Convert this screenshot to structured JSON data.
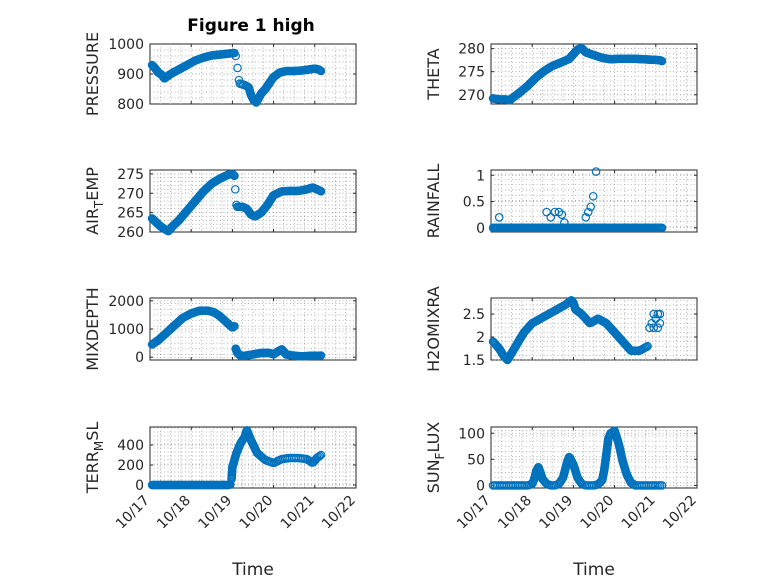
{
  "figure": {
    "title": "Figure 1 high",
    "marker_color": "#0072BD"
  },
  "chart_data": [
    {
      "type": "scatter",
      "title": "Figure 1 high",
      "xlabel": "",
      "ylabel": "PRESSURE",
      "ylim": [
        800,
        1000
      ],
      "yticks": [
        800,
        900,
        1000
      ],
      "xlim": [
        0,
        5
      ],
      "xticklabels": [
        "10/17",
        "10/18",
        "10/19",
        "10/20",
        "10/21",
        "10/22"
      ],
      "show_xticklabels": false,
      "segments": [
        {
          "x": [
            0.05,
            0.12,
            0.2,
            0.28,
            0.35,
            0.5,
            0.7,
            0.9,
            1.1,
            1.3,
            1.5,
            1.7,
            1.9,
            2.05
          ],
          "y": [
            930,
            920,
            905,
            898,
            885,
            900,
            915,
            930,
            945,
            955,
            962,
            965,
            968,
            970
          ],
          "n": 90
        },
        {
          "x": [
            2.08,
            2.12,
            2.16
          ],
          "y": [
            960,
            925,
            880
          ],
          "n": 3
        },
        {
          "x": [
            2.18,
            2.25,
            2.32,
            2.4,
            2.45,
            2.52,
            2.58
          ],
          "y": [
            868,
            865,
            862,
            855,
            830,
            812,
            805
          ],
          "n": 20
        },
        {
          "x": [
            2.6,
            2.7,
            2.8,
            2.9,
            3.0,
            3.15,
            3.3,
            3.5,
            3.7,
            3.85,
            4.0,
            4.1,
            4.15
          ],
          "y": [
            810,
            835,
            850,
            870,
            890,
            905,
            910,
            910,
            912,
            915,
            918,
            915,
            910
          ],
          "n": 80
        }
      ]
    },
    {
      "type": "scatter",
      "xlabel": "",
      "ylabel": "THETA",
      "ylim": [
        268,
        281
      ],
      "yticks": [
        270,
        275,
        280
      ],
      "xlim": [
        0,
        5
      ],
      "xticklabels": [
        "10/17",
        "10/18",
        "10/19",
        "10/20",
        "10/21",
        "10/22"
      ],
      "show_xticklabels": false,
      "segments": [
        {
          "x": [
            0.05,
            0.2,
            0.35,
            0.45,
            0.55,
            0.7,
            0.9,
            1.1,
            1.3,
            1.5,
            1.7,
            1.9,
            2.0,
            2.1,
            2.2,
            2.3,
            2.5,
            2.7,
            2.9,
            3.1,
            3.3,
            3.5,
            3.7,
            3.9,
            4.1,
            4.15
          ],
          "y": [
            269.2,
            269.0,
            269.0,
            268.8,
            269.5,
            270.5,
            272.0,
            273.8,
            275.2,
            276.3,
            277.0,
            277.8,
            278.8,
            279.8,
            280.1,
            279.2,
            278.6,
            278.0,
            277.7,
            277.8,
            277.8,
            277.8,
            277.7,
            277.6,
            277.5,
            277.3
          ],
          "n": 200
        }
      ]
    },
    {
      "type": "scatter",
      "xlabel": "",
      "ylabel": "AIR_TEMP",
      "ylabel_main": "AIR",
      "ylabel_sub": "T",
      "ylabel_rest": "EMP",
      "ylim": [
        260,
        276
      ],
      "yticks": [
        260,
        265,
        270,
        275
      ],
      "xlim": [
        0,
        5
      ],
      "xticklabels": [
        "10/17",
        "10/18",
        "10/19",
        "10/20",
        "10/21",
        "10/22"
      ],
      "show_xticklabels": false,
      "segments": [
        {
          "x": [
            0.05,
            0.15,
            0.25,
            0.35,
            0.45,
            0.55,
            0.7,
            0.9,
            1.1,
            1.3,
            1.5,
            1.7,
            1.9,
            2.0,
            2.05
          ],
          "y": [
            263.5,
            262.5,
            261.5,
            260.8,
            260.2,
            261.5,
            263.0,
            265.5,
            268.0,
            270.5,
            272.5,
            273.8,
            274.8,
            275.0,
            274.5
          ],
          "n": 110
        },
        {
          "x": [
            2.07,
            2.1
          ],
          "y": [
            271.0,
            267.0
          ],
          "n": 2
        },
        {
          "x": [
            2.12,
            2.25,
            2.35,
            2.45,
            2.55,
            2.7,
            2.85,
            3.0,
            3.2,
            3.4,
            3.6,
            3.8,
            3.95,
            4.1,
            4.15
          ],
          "y": [
            266.5,
            266.5,
            266.0,
            264.5,
            264.0,
            265.0,
            267.0,
            269.5,
            270.5,
            270.6,
            270.6,
            271.0,
            271.5,
            270.8,
            270.5
          ],
          "n": 95
        }
      ]
    },
    {
      "type": "scatter",
      "xlabel": "",
      "ylabel": "RAINFALL",
      "ylim": [
        -0.08,
        1.1
      ],
      "yticks": [
        0,
        0.5,
        1
      ],
      "xlim": [
        0,
        5
      ],
      "xticklabels": [
        "10/17",
        "10/18",
        "10/19",
        "10/20",
        "10/21",
        "10/22"
      ],
      "show_xticklabels": false,
      "segments": [
        {
          "x": [
            0.05,
            4.15
          ],
          "y": [
            0,
            0
          ],
          "n": 150
        }
      ],
      "points": {
        "x": [
          0.2,
          1.35,
          1.45,
          1.55,
          1.65,
          1.72,
          1.78,
          2.3,
          2.36,
          2.42,
          2.48,
          2.55
        ],
        "y": [
          0.2,
          0.3,
          0.2,
          0.3,
          0.3,
          0.25,
          0.1,
          0.2,
          0.3,
          0.4,
          0.6,
          1.07
        ]
      }
    },
    {
      "type": "scatter",
      "xlabel": "",
      "ylabel": "MIXDEPTH",
      "ylim": [
        -100,
        2100
      ],
      "yticks": [
        0,
        1000,
        2000
      ],
      "xlim": [
        0,
        5
      ],
      "xticklabels": [
        "10/17",
        "10/18",
        "10/19",
        "10/20",
        "10/21",
        "10/22"
      ],
      "show_xticklabels": false,
      "segments": [
        {
          "x": [
            0.05,
            0.2,
            0.35,
            0.5,
            0.65,
            0.8,
            1.0,
            1.2,
            1.4,
            1.55,
            1.7,
            1.85,
            2.0,
            2.05
          ],
          "y": [
            450,
            600,
            800,
            1000,
            1200,
            1400,
            1550,
            1650,
            1650,
            1600,
            1450,
            1250,
            1050,
            1100
          ],
          "n": 95
        },
        {
          "x": [
            2.08,
            2.12,
            2.2,
            2.3,
            2.5,
            2.7,
            2.9,
            3.0,
            3.1,
            3.2,
            3.3,
            3.5,
            3.7,
            3.9,
            4.1,
            4.15
          ],
          "y": [
            300,
            150,
            50,
            50,
            100,
            150,
            150,
            100,
            200,
            280,
            100,
            50,
            30,
            50,
            50,
            60
          ],
          "n": 110
        }
      ]
    },
    {
      "type": "scatter",
      "xlabel": "",
      "ylabel": "H2OMIXRA",
      "ylim": [
        1.5,
        2.85
      ],
      "yticks": [
        1.5,
        2,
        2.5
      ],
      "xlim": [
        0,
        5
      ],
      "xticklabels": [
        "10/17",
        "10/18",
        "10/19",
        "10/20",
        "10/21",
        "10/22"
      ],
      "show_xticklabels": false,
      "segments": [
        {
          "x": [
            0.05,
            0.2,
            0.3,
            0.4,
            0.6,
            0.8,
            1.0,
            1.2,
            1.4,
            1.6,
            1.8,
            1.95,
            2.0,
            2.05,
            2.2,
            2.4,
            2.6,
            2.8,
            3.0,
            3.2,
            3.4,
            3.6,
            3.7,
            3.8
          ],
          "y": [
            1.9,
            1.75,
            1.6,
            1.5,
            1.8,
            2.1,
            2.3,
            2.4,
            2.5,
            2.6,
            2.7,
            2.8,
            2.75,
            2.6,
            2.5,
            2.3,
            2.4,
            2.3,
            2.1,
            1.9,
            1.7,
            1.7,
            1.75,
            1.8
          ],
          "n": 170
        }
      ],
      "points": {
        "x": [
          3.85,
          3.9,
          3.95,
          4.0,
          4.05,
          4.1,
          3.95,
          4.05,
          4.1
        ],
        "y": [
          2.2,
          2.3,
          2.2,
          2.4,
          2.5,
          2.5,
          2.5,
          2.2,
          2.3
        ]
      }
    },
    {
      "type": "scatter",
      "xlabel": "Time",
      "ylabel": "TERR_MSL",
      "ylabel_main": "TERR",
      "ylabel_sub": "M",
      "ylabel_rest": "SL",
      "ylim": [
        -30,
        580
      ],
      "yticks": [
        0,
        200,
        400
      ],
      "xlim": [
        0,
        5
      ],
      "xticklabels": [
        "10/17",
        "10/18",
        "10/19",
        "10/20",
        "10/21",
        "10/22"
      ],
      "show_xticklabels": true,
      "segments": [
        {
          "x": [
            0.05,
            1.8,
            1.9,
            1.95
          ],
          "y": [
            0,
            0,
            0,
            5
          ],
          "n": 95
        },
        {
          "x": [
            1.98,
            2.0,
            2.1,
            2.2,
            2.3,
            2.35,
            2.45,
            2.6,
            2.8,
            3.0,
            3.2,
            3.4,
            3.6,
            3.8,
            3.95,
            4.05,
            4.15
          ],
          "y": [
            60,
            180,
            320,
            420,
            480,
            550,
            450,
            320,
            250,
            220,
            260,
            270,
            270,
            260,
            220,
            270,
            300
          ],
          "n": 100
        }
      ]
    },
    {
      "type": "scatter",
      "xlabel": "Time",
      "ylabel": "SUN_FLUX",
      "ylabel_main": "SUN",
      "ylabel_sub": "F",
      "ylabel_rest": "LUX",
      "ylim": [
        -5,
        112
      ],
      "yticks": [
        0,
        50,
        100
      ],
      "xlim": [
        0,
        5
      ],
      "xticklabels": [
        "10/17",
        "10/18",
        "10/19",
        "10/20",
        "10/21",
        "10/22"
      ],
      "show_xticklabels": true,
      "segments": [
        {
          "x": [
            0.05,
            0.9,
            1.0,
            1.05,
            1.1,
            1.15,
            1.2,
            1.25,
            1.35,
            1.45,
            1.55,
            1.65,
            1.75,
            1.8,
            1.85,
            1.9,
            2.0,
            2.1,
            2.2,
            2.3,
            2.4,
            2.5,
            2.6,
            2.7,
            2.75,
            2.8,
            2.85,
            2.9,
            3.0,
            3.1,
            3.2,
            3.3,
            3.4,
            3.5,
            4.15
          ],
          "y": [
            0,
            0,
            3,
            12,
            28,
            35,
            25,
            12,
            3,
            0,
            0,
            3,
            15,
            30,
            45,
            55,
            40,
            15,
            3,
            0,
            0,
            0,
            2,
            10,
            30,
            60,
            90,
            100,
            105,
            80,
            45,
            20,
            5,
            0,
            0
          ],
          "n": 210
        }
      ]
    }
  ]
}
